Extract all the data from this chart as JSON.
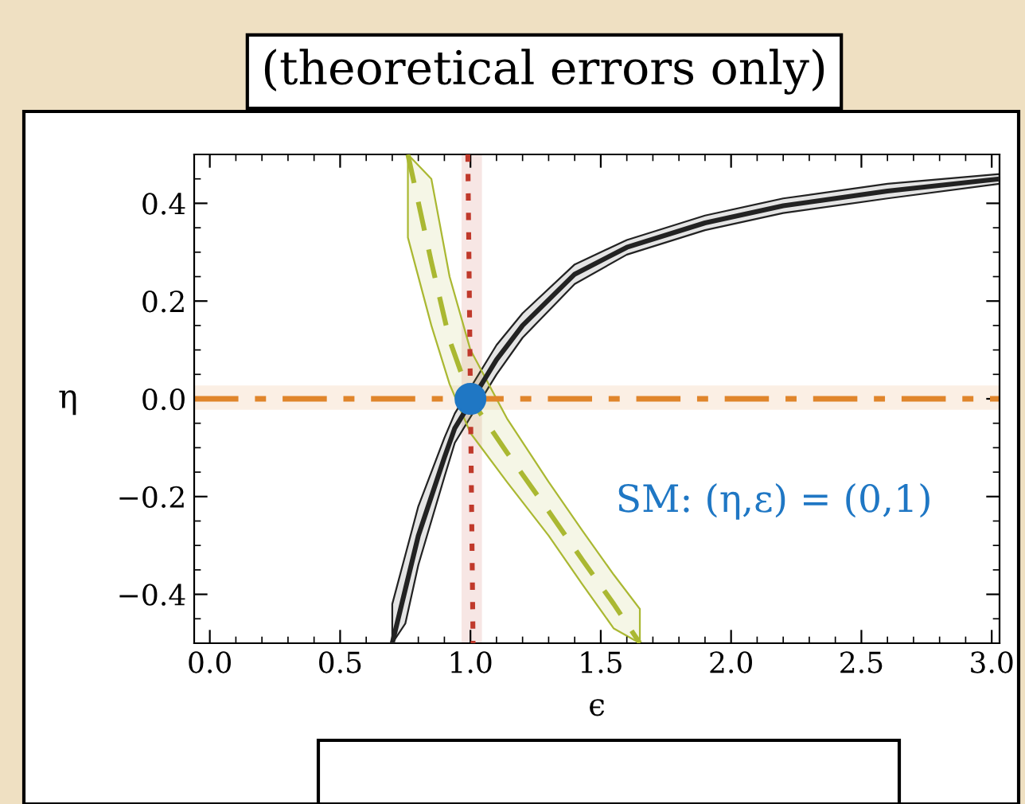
{
  "chart_data": {
    "type": "line",
    "title": "(theoretical errors only)",
    "xlabel": "ϵ",
    "ylabel": "η",
    "xlim": [
      -0.06,
      3.03
    ],
    "ylim": [
      -0.5,
      0.5
    ],
    "xticks": [
      {
        "value": 0,
        "label": "0.0"
      },
      0.5,
      {
        "value": 1,
        "label": "1.0"
      },
      1.5,
      {
        "value": 2,
        "label": "2.0"
      },
      2.5,
      {
        "value": 3,
        "label": "3.0"
      }
    ],
    "yticks": [
      {
        "value": -0.4,
        "label": "−0.4"
      },
      {
        "value": -0.2,
        "label": "−0.2"
      },
      {
        "value": 0,
        "label": "0.0"
      },
      0.2,
      0.4
    ],
    "grid": false,
    "legend": false,
    "series": [
      {
        "color": "#222222",
        "line_style": "solid",
        "marker": "none",
        "x": [
          0.7,
          0.75,
          0.8,
          0.9,
          0.94,
          1.1,
          1.2,
          1.4,
          1.6,
          1.9,
          2.2,
          2.6,
          3.03
        ],
        "values": [
          -0.5,
          -0.39,
          -0.28,
          -0.12,
          -0.06,
          0.08,
          0.15,
          0.255,
          0.31,
          0.36,
          0.395,
          0.425,
          0.45
        ],
        "lower": [
          -0.5,
          -0.46,
          -0.34,
          -0.16,
          -0.09,
          0.05,
          0.125,
          0.235,
          0.295,
          0.345,
          0.38,
          0.41,
          0.44
        ],
        "upper": [
          -0.42,
          -0.32,
          -0.22,
          -0.08,
          -0.03,
          0.11,
          0.175,
          0.275,
          0.325,
          0.375,
          0.41,
          0.44,
          0.46
        ]
      },
      {
        "color": "#aab832",
        "line_style": "dashed",
        "marker": "none",
        "x": [
          0.76,
          0.85,
          0.92,
          1.0,
          1.14,
          1.3,
          1.43,
          1.55,
          1.65
        ],
        "values": [
          0.5,
          0.28,
          0.12,
          0.0,
          -0.11,
          -0.23,
          -0.33,
          -0.42,
          -0.5
        ],
        "lower": [
          0.33,
          0.15,
          0.03,
          -0.07,
          -0.17,
          -0.28,
          -0.38,
          -0.47,
          -0.5
        ],
        "upper": [
          0.5,
          0.45,
          0.25,
          0.1,
          -0.04,
          -0.17,
          -0.27,
          -0.36,
          -0.43
        ]
      },
      {
        "color": "#c0392b",
        "line_style": "dotted",
        "marker": "none",
        "x": [
          0.99,
          1.01
        ],
        "values": [
          0.5,
          -0.5
        ]
      },
      {
        "type": "scatter",
        "color": "#1f77c4",
        "marker": "circle",
        "x": [
          1.0
        ],
        "values": [
          0.0
        ]
      }
    ],
    "bands": [
      {
        "axis": "x",
        "from": 0.97,
        "to": 1.04,
        "color": "#c0392b"
      },
      {
        "axis": "y",
        "from": -0.02,
        "to": 0.025,
        "color": "#e0852b"
      }
    ],
    "ref_lines": [
      {
        "axis": "y",
        "value": 0,
        "color": "#e0852b",
        "line_style": "dashdot"
      }
    ],
    "annotations": [
      "SM: (η,ε) = (0,1)"
    ]
  }
}
